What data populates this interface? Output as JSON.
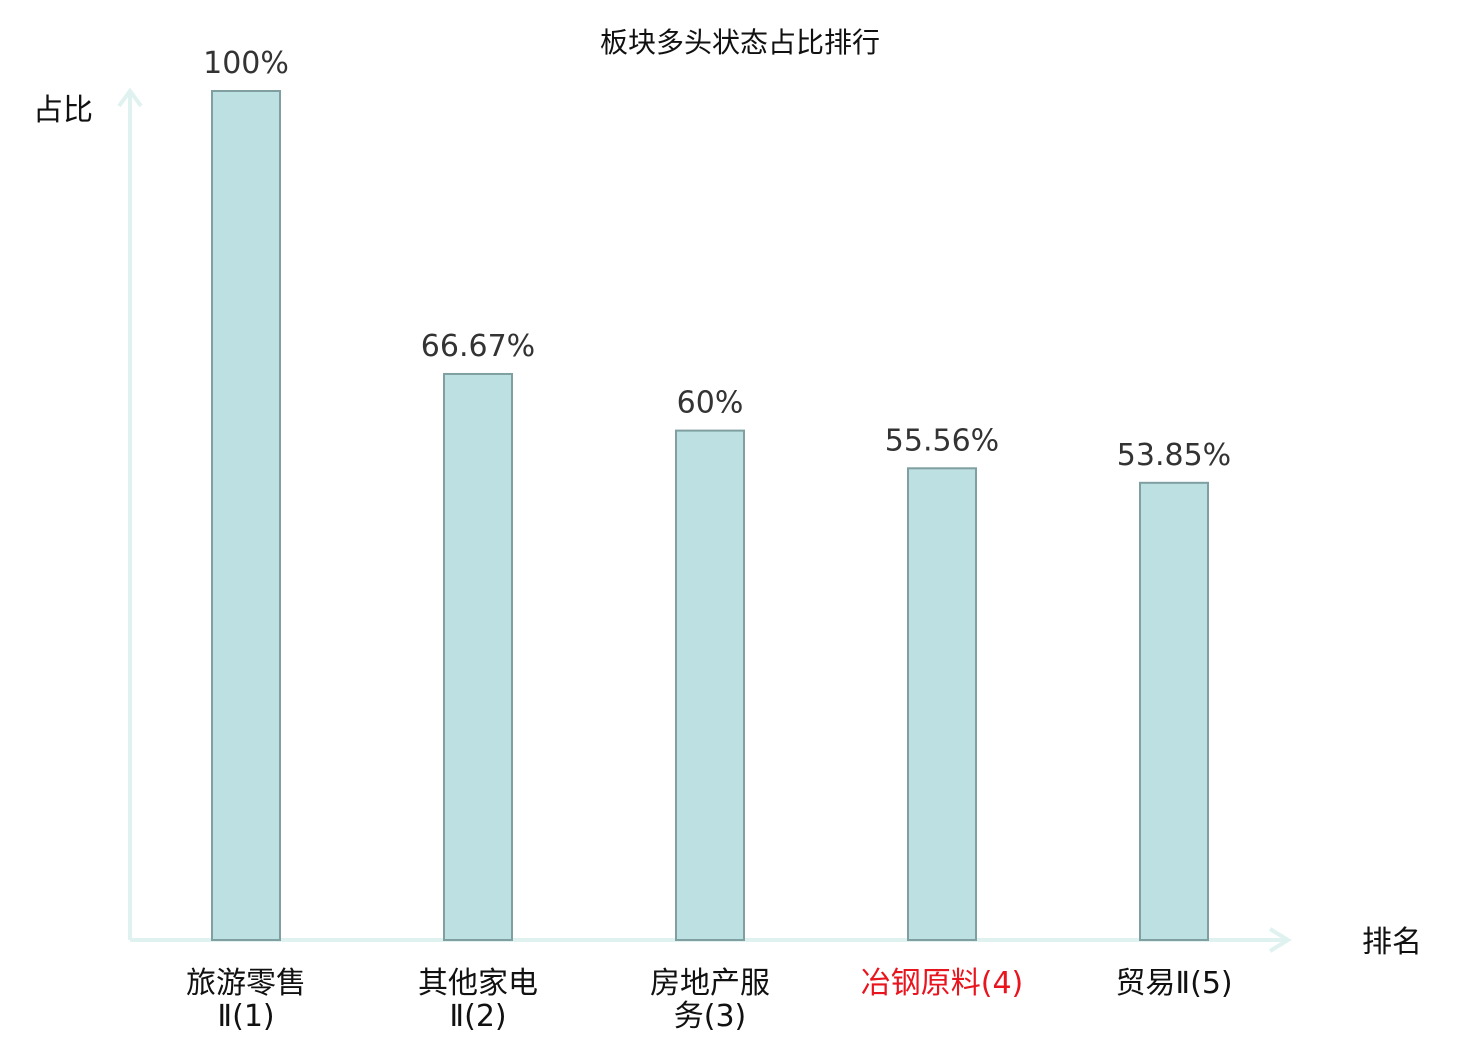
{
  "chart_data": {
    "type": "bar",
    "title": "板块多头状态占比排行",
    "xlabel": "排名",
    "ylabel": "占比",
    "categories": [
      {
        "lines": [
          "旅游零售",
          "Ⅱ(1)"
        ],
        "highlight": false
      },
      {
        "lines": [
          "其他家电",
          "Ⅱ(2)"
        ],
        "highlight": false
      },
      {
        "lines": [
          "房地产服",
          "务(3)"
        ],
        "highlight": false
      },
      {
        "lines": [
          "冶钢原料(4)"
        ],
        "highlight": true
      },
      {
        "lines": [
          "贸易Ⅱ(5)"
        ],
        "highlight": false
      }
    ],
    "values": [
      100,
      66.67,
      60,
      55.56,
      53.85
    ],
    "value_labels": [
      "100%",
      "66.67%",
      "60%",
      "55.56%",
      "53.85%"
    ],
    "ylim": [
      0,
      100
    ],
    "grid": false,
    "legend": "none"
  },
  "colors": {
    "bar_fill": "#bde0e2",
    "bar_stroke": "#7f9fa1",
    "axis": "#dff2ef",
    "text": "#111111",
    "value_text": "#333333",
    "highlight": "#e8141e"
  }
}
